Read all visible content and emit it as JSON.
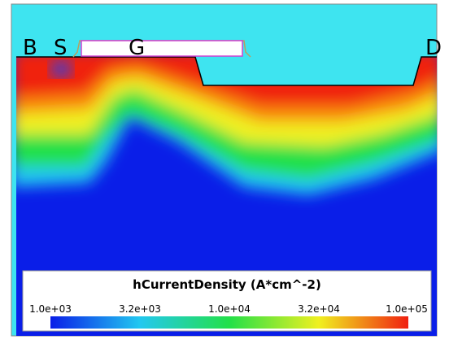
{
  "terminals": [
    "B",
    "S",
    "G",
    "D"
  ],
  "colorbar": {
    "title": "hCurrentDensity (A*cm^-2)",
    "ticks": [
      "1.0e+03",
      "3.2e+03",
      "1.0e+04",
      "3.2e+04",
      "1.0e+05"
    ]
  }
}
